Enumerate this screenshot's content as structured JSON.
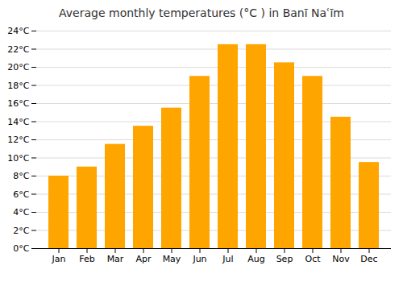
{
  "chart_data": {
    "type": "bar",
    "title": "Average monthly temperatures (°C ) in Banī Naʿīm",
    "categories": [
      "Jan",
      "Feb",
      "Mar",
      "Apr",
      "May",
      "Jun",
      "Jul",
      "Aug",
      "Sep",
      "Oct",
      "Nov",
      "Dec"
    ],
    "values": [
      8.0,
      9.0,
      11.5,
      13.5,
      15.5,
      19.0,
      22.5,
      22.5,
      20.5,
      19.0,
      14.5,
      9.5
    ],
    "color": "#FFA500",
    "ylim": [
      0,
      24
    ],
    "yticks": [
      {
        "value": 0,
        "label": "0°C"
      },
      {
        "value": 2,
        "label": "2°C"
      },
      {
        "value": 4,
        "label": "4°C"
      },
      {
        "value": 6,
        "label": "6°C"
      },
      {
        "value": 8,
        "label": "8°C"
      },
      {
        "value": 10,
        "label": "10°C"
      },
      {
        "value": 12,
        "label": "12°C"
      },
      {
        "value": 14,
        "label": "14°C"
      },
      {
        "value": 16,
        "label": "16°C"
      },
      {
        "value": 18,
        "label": "18°C"
      },
      {
        "value": 20,
        "label": "20°C"
      },
      {
        "value": 22,
        "label": "22°C"
      },
      {
        "value": 24,
        "label": "24°C"
      }
    ],
    "grid": true
  }
}
